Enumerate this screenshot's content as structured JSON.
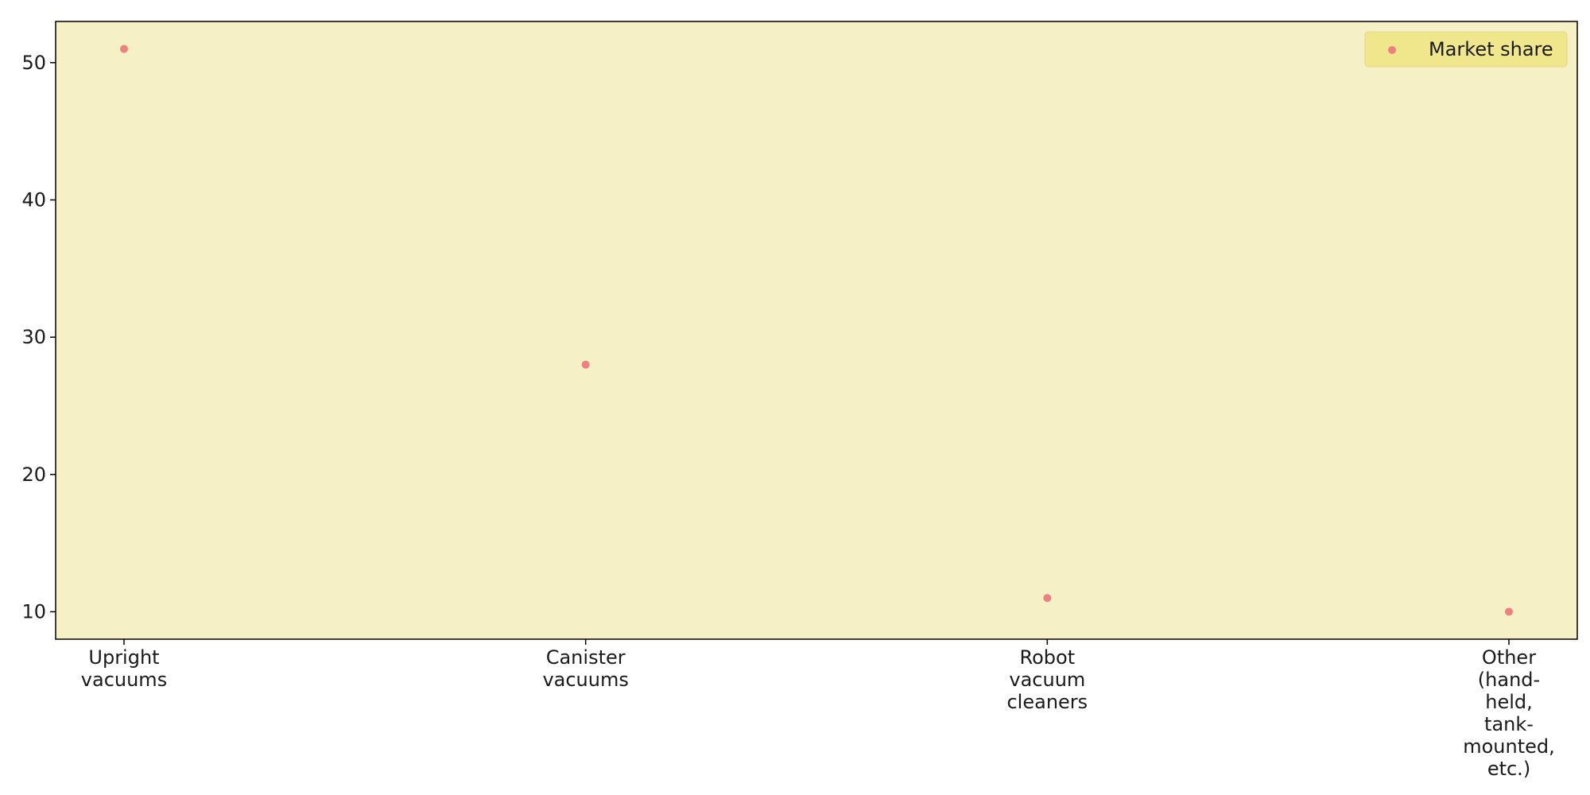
{
  "chart_data": {
    "type": "scatter",
    "title": "",
    "xlabel": "",
    "ylabel": "",
    "categories": [
      [
        "Upright",
        "vacuums"
      ],
      [
        "Canister",
        "vacuums"
      ],
      [
        "Robot",
        "vacuum",
        "cleaners"
      ],
      [
        "Other",
        "(hand-",
        "held,",
        "tank-",
        "mounted,",
        "etc.)"
      ]
    ],
    "series": [
      {
        "name": "Market share",
        "values": [
          51,
          28,
          11,
          10
        ]
      }
    ],
    "ylim": [
      8,
      53
    ],
    "yticks": [
      10,
      20,
      30,
      40,
      50
    ],
    "grid": false,
    "legend_position": "top-right"
  },
  "colors": {
    "plot_background": "#f5f0c6",
    "marker": "#f08080",
    "legend_background": "#f0e68c",
    "axis": "#000000"
  }
}
